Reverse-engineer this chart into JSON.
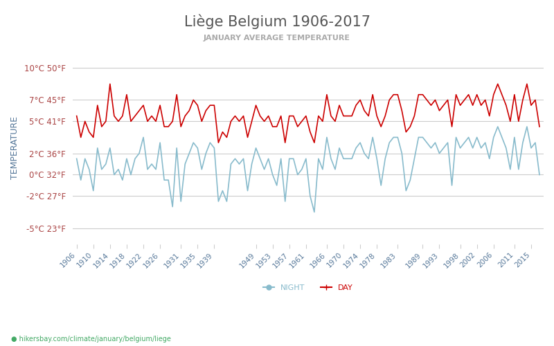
{
  "title": "Liège Belgium 1906-2017",
  "subtitle": "JANUARY AVERAGE TEMPERATURE",
  "ylabel": "TEMPERATURE",
  "footer": "hikersbay.com/climate/january/belgium/liege",
  "years": [
    1906,
    1907,
    1908,
    1909,
    1910,
    1911,
    1912,
    1913,
    1914,
    1915,
    1916,
    1917,
    1918,
    1919,
    1920,
    1921,
    1922,
    1923,
    1924,
    1925,
    1926,
    1927,
    1928,
    1929,
    1930,
    1931,
    1932,
    1933,
    1934,
    1935,
    1936,
    1937,
    1938,
    1939,
    1940,
    1941,
    1942,
    1943,
    1944,
    1945,
    1946,
    1947,
    1948,
    1949,
    1950,
    1951,
    1952,
    1953,
    1954,
    1955,
    1956,
    1957,
    1958,
    1959,
    1960,
    1961,
    1962,
    1963,
    1964,
    1965,
    1966,
    1967,
    1968,
    1969,
    1970,
    1971,
    1972,
    1973,
    1974,
    1975,
    1976,
    1977,
    1978,
    1979,
    1980,
    1981,
    1982,
    1983,
    1984,
    1985,
    1986,
    1987,
    1988,
    1989,
    1990,
    1991,
    1992,
    1993,
    1994,
    1995,
    1996,
    1997,
    1998,
    1999,
    2000,
    2001,
    2002,
    2003,
    2004,
    2005,
    2006,
    2007,
    2008,
    2009,
    2010,
    2011,
    2012,
    2013,
    2014,
    2015,
    2016,
    2017
  ],
  "day_temps": [
    5.5,
    3.5,
    5.0,
    4.0,
    3.5,
    6.5,
    4.5,
    5.0,
    8.5,
    5.5,
    5.0,
    5.5,
    7.5,
    5.0,
    5.5,
    6.0,
    6.5,
    5.0,
    5.5,
    5.0,
    6.5,
    4.5,
    4.5,
    5.0,
    7.5,
    4.5,
    5.5,
    6.0,
    7.0,
    6.5,
    5.0,
    6.0,
    6.5,
    6.5,
    3.0,
    4.0,
    3.5,
    5.0,
    5.5,
    5.0,
    5.5,
    3.5,
    5.0,
    6.5,
    5.5,
    5.0,
    5.5,
    4.5,
    4.5,
    5.5,
    3.0,
    5.5,
    5.5,
    4.5,
    5.0,
    5.5,
    4.0,
    3.0,
    5.5,
    5.0,
    7.5,
    5.5,
    5.0,
    6.5,
    5.5,
    5.5,
    5.5,
    6.5,
    7.0,
    6.0,
    5.5,
    7.5,
    5.5,
    4.5,
    5.5,
    7.0,
    7.5,
    7.5,
    6.0,
    4.0,
    4.5,
    5.5,
    7.5,
    7.5,
    7.0,
    6.5,
    7.0,
    6.0,
    6.5,
    7.0,
    4.5,
    7.5,
    6.5,
    7.0,
    7.5,
    6.5,
    7.5,
    6.5,
    7.0,
    5.5,
    7.5,
    8.5,
    7.5,
    6.5,
    5.0,
    7.5,
    5.0,
    7.0,
    8.5,
    6.5,
    7.0,
    4.5
  ],
  "night_temps": [
    1.5,
    -0.5,
    1.5,
    0.5,
    -1.5,
    2.5,
    0.5,
    1.0,
    2.5,
    0.0,
    0.5,
    -0.5,
    1.5,
    0.0,
    1.5,
    2.0,
    3.5,
    0.5,
    1.0,
    0.5,
    3.0,
    -0.5,
    -0.5,
    -3.0,
    2.5,
    -2.5,
    1.0,
    2.0,
    3.0,
    2.5,
    0.5,
    2.0,
    3.0,
    2.5,
    -2.5,
    -1.5,
    -2.5,
    1.0,
    1.5,
    1.0,
    1.5,
    -1.5,
    1.0,
    2.5,
    1.5,
    0.5,
    1.5,
    0.0,
    -1.0,
    1.5,
    -2.5,
    1.5,
    1.5,
    0.0,
    0.5,
    1.5,
    -2.0,
    -3.5,
    1.5,
    0.5,
    3.5,
    1.5,
    0.5,
    2.5,
    1.5,
    1.5,
    1.5,
    2.5,
    3.0,
    2.0,
    1.5,
    3.5,
    1.5,
    -1.0,
    1.5,
    3.0,
    3.5,
    3.5,
    2.0,
    -1.5,
    -0.5,
    1.5,
    3.5,
    3.5,
    3.0,
    2.5,
    3.0,
    2.0,
    2.5,
    3.0,
    -1.0,
    3.5,
    2.5,
    3.0,
    3.5,
    2.5,
    3.5,
    2.5,
    3.0,
    1.5,
    3.5,
    4.5,
    3.5,
    2.5,
    0.5,
    3.5,
    0.5,
    3.0,
    4.5,
    2.5,
    3.0,
    0.0
  ],
  "day_color": "#cc0000",
  "night_color": "#88bbcc",
  "title_color": "#555555",
  "subtitle_color": "#aaaaaa",
  "ylabel_color": "#557799",
  "tick_color": "#aa4444",
  "grid_color": "#cccccc",
  "background_color": "#ffffff",
  "yticks_c": [
    -5,
    -2,
    0,
    2,
    5,
    7,
    10
  ],
  "yticks_f": [
    23,
    27,
    32,
    36,
    41,
    45,
    50
  ],
  "xtick_labels": [
    "1906",
    "1910",
    "1914",
    "1918",
    "1922",
    "1926",
    "1931",
    "1935",
    "1939",
    "1949",
    "1953",
    "1957",
    "1961",
    "1966",
    "1970",
    "1974",
    "1978",
    "1983",
    "1989",
    "1993",
    "1998",
    "2002",
    "2006",
    "2011",
    "2015"
  ],
  "xtick_years": [
    1906,
    1910,
    1914,
    1918,
    1922,
    1926,
    1931,
    1935,
    1939,
    1949,
    1953,
    1957,
    1961,
    1966,
    1970,
    1974,
    1978,
    1983,
    1989,
    1993,
    1998,
    2002,
    2006,
    2011,
    2015
  ]
}
